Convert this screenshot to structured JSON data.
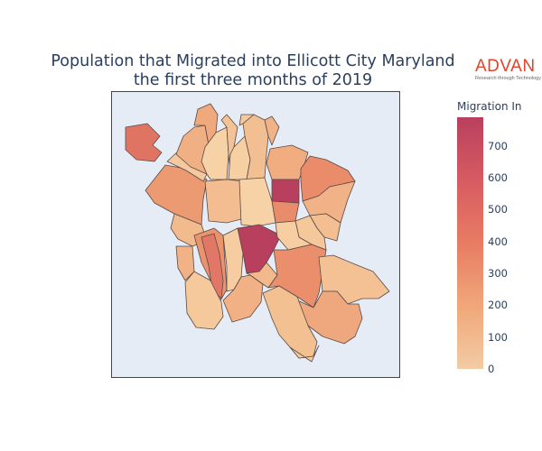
{
  "title_line1": "Population that Migrated into Ellicott City Maryland",
  "title_line2": "the first three months of 2019",
  "logo": {
    "brand": "ADVAN",
    "tagline": "Research through Technology"
  },
  "colorbar": {
    "title": "Migration In",
    "min": 0,
    "max": 790,
    "ticks": [
      "0",
      "100",
      "200",
      "300",
      "400",
      "500",
      "600",
      "700"
    ],
    "colorscale": [
      "#f3cba5",
      "#f0a779",
      "#e77c63",
      "#d75b62",
      "#b8405e"
    ]
  },
  "map": {
    "background": "#e5ecf6",
    "border_color": "#444444",
    "region_count": 33
  }
}
